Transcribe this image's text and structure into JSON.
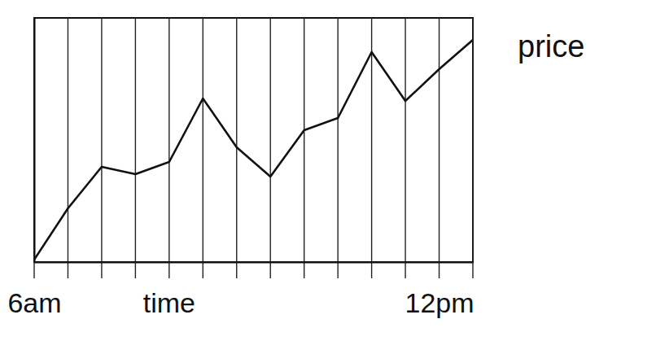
{
  "chart_data": {
    "type": "line",
    "x_label": "time",
    "y_label": "price",
    "categories": [
      "6am",
      null,
      null,
      null,
      null,
      null,
      null,
      null,
      null,
      null,
      null,
      null,
      "12pm",
      null
    ],
    "values": [
      1,
      22,
      39,
      36,
      41,
      67,
      47,
      35,
      54,
      59,
      86,
      66,
      79,
      91
    ],
    "color": "#111111",
    "ylim": [
      0,
      100
    ],
    "yticks": [],
    "grid": true,
    "tick_labels": "x"
  }
}
